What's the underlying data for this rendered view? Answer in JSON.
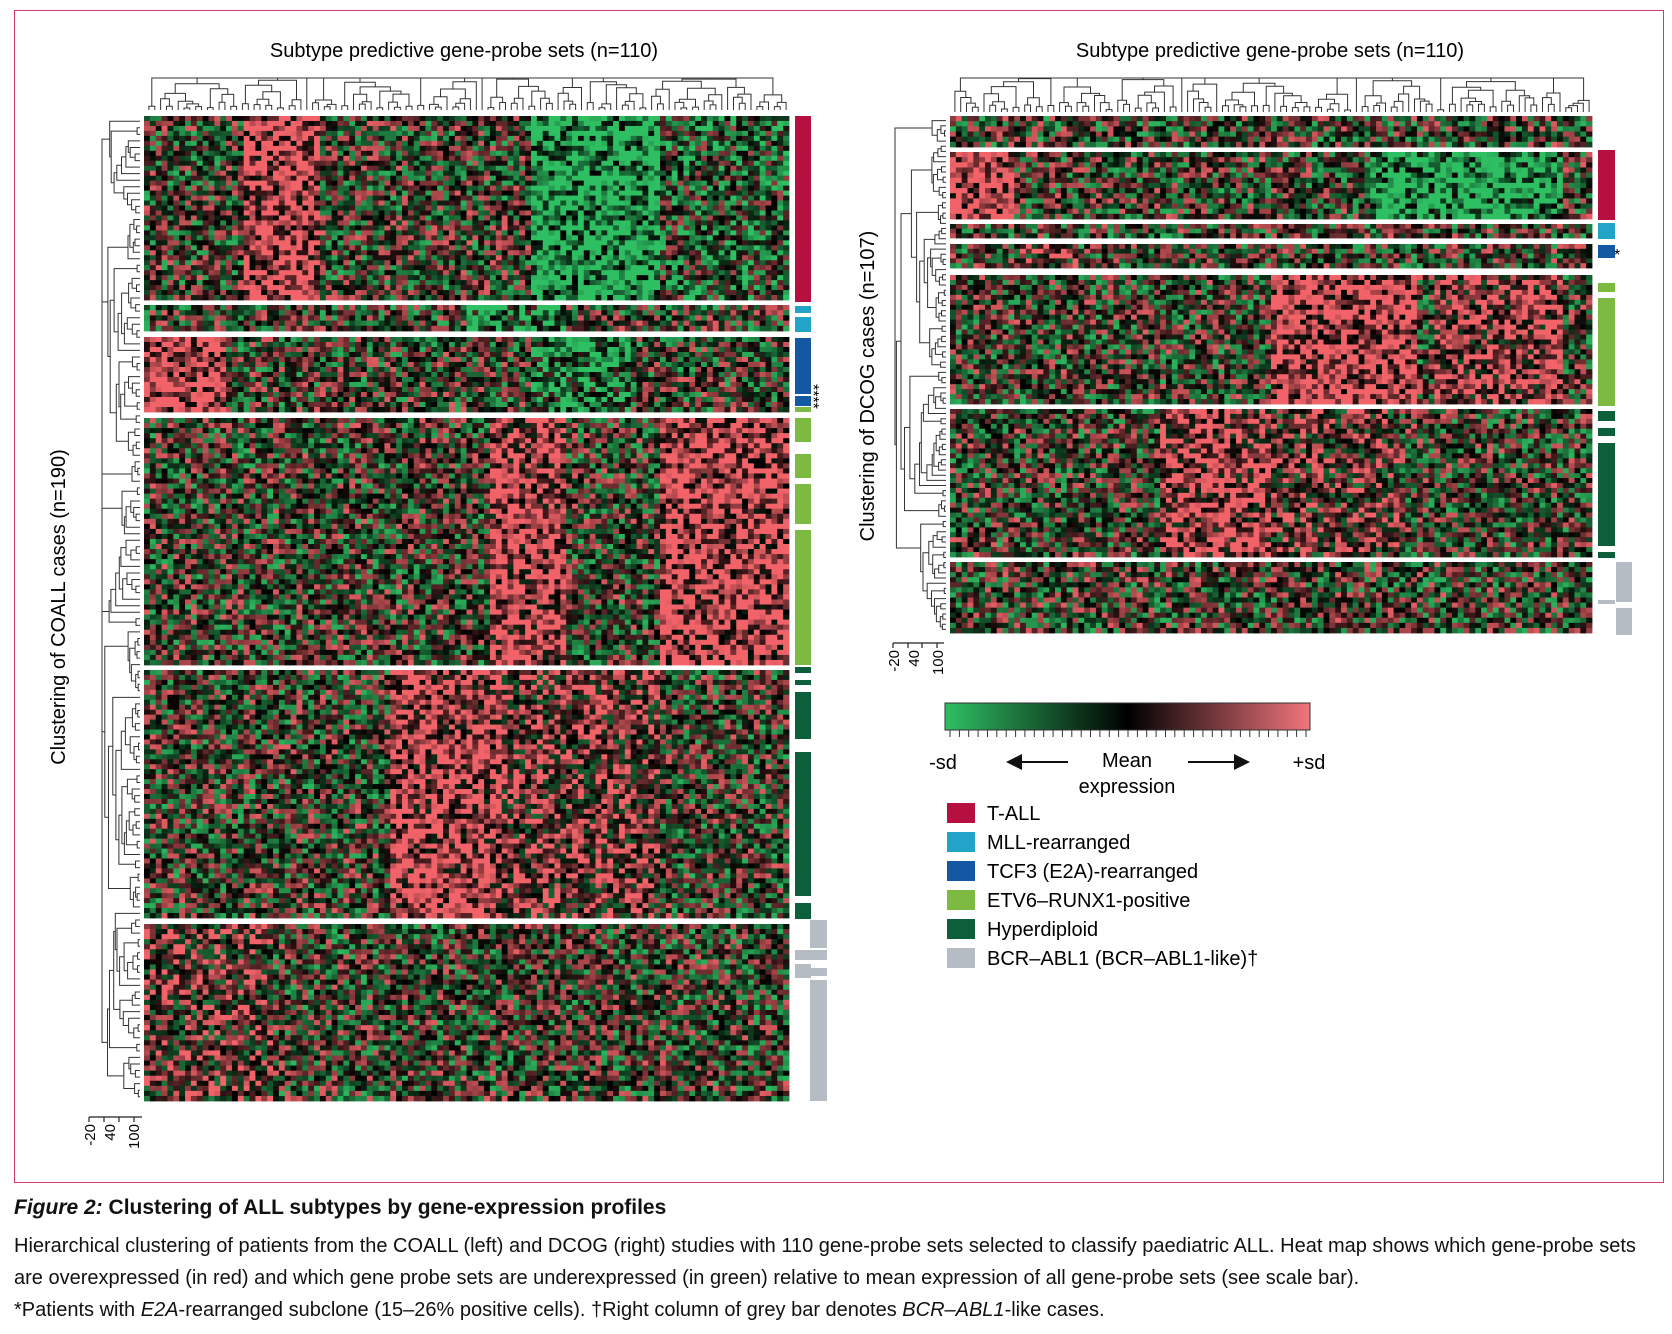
{
  "figure": {
    "left_panel": {
      "title": "Subtype predictive gene-probe sets (n=110)",
      "ylabel": "Clustering of COALL cases (n=190)",
      "dendro_ticks": [
        "-20",
        "40",
        "100"
      ],
      "annotation_marks": [
        "****"
      ]
    },
    "right_panel": {
      "title": "Subtype predictive gene-probe sets (n=110)",
      "ylabel": "Clustering of DCOG cases (n=107)",
      "dendro_ticks": [
        "-20",
        "40",
        "100"
      ],
      "annotation_marks": [
        "*"
      ]
    },
    "scale_bar": {
      "left_label": "-sd",
      "center_label_1": "Mean",
      "center_label_2": "expression",
      "right_label": "+sd",
      "gradient_colors": [
        "#2fbf63",
        "#000000",
        "#f1757c"
      ]
    },
    "legend": [
      {
        "label": "T-ALL",
        "color": "#b5103f"
      },
      {
        "label": "MLL-rearranged",
        "color": "#22a4c9"
      },
      {
        "label": "TCF3 (E2A)-rearranged",
        "color": "#1358a3"
      },
      {
        "label": "ETV6–RUNX1-positive",
        "color": "#7dba41"
      },
      {
        "label": "Hyperdiploid",
        "color": "#0d5e3a"
      },
      {
        "label": "BCR–ABL1 (BCR–ABL1-like)†",
        "color": "#b6bcc4"
      }
    ]
  },
  "caption": {
    "title_italic": "Figure 2:",
    "title_rest": " Clustering of ALL subtypes by gene-expression profiles",
    "line1": "Hierarchical clustering of patients from the COALL (left) and DCOG (right) studies with 110 gene-probe sets selected to classify paediatric ALL. Heat map shows which gene-probe sets are overexpressed (in red) and which gene probe sets are underexpressed (in green) relative to mean expression of all gene-probe sets (see scale bar).",
    "line2_a": "*Patients with ",
    "line2_b": "E2A",
    "line2_c": "-rearranged subclone (15–26% positive cells). †Right column of grey bar denotes ",
    "line2_d": "BCR–ABL1",
    "line2_e": "-like cases."
  }
}
